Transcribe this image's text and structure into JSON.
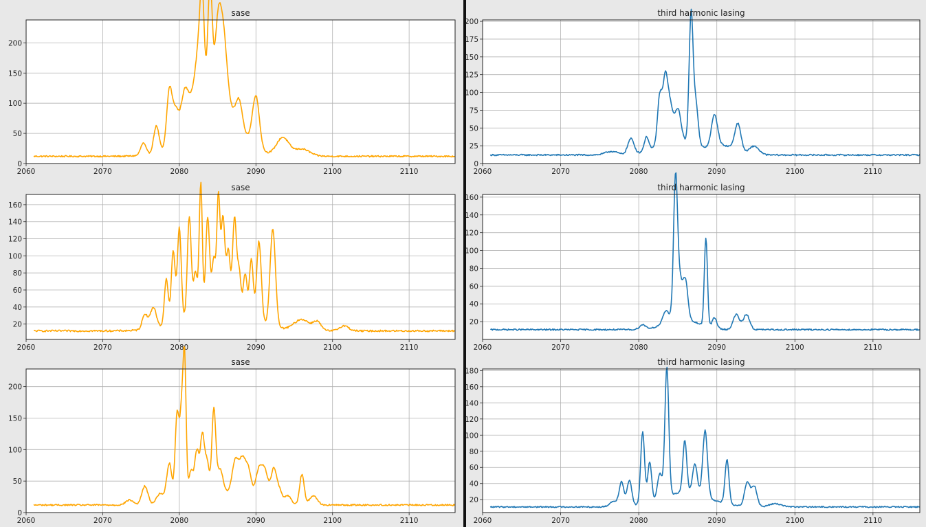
{
  "colors": {
    "sase": "#FFA500",
    "third": "#1F77B4",
    "divider": "#111111",
    "background": "#e8e8e8",
    "grid": "#b0b0b0"
  },
  "chart_data": [
    {
      "type": "line",
      "title": "sase",
      "color": "#FFA500",
      "xlim": [
        2060,
        2116
      ],
      "ylim": [
        0,
        238
      ],
      "xticks": [
        2060,
        2070,
        2080,
        2090,
        2100,
        2110
      ],
      "yticks": [
        0,
        50,
        100,
        150,
        200
      ],
      "grid": true,
      "baseline": 12,
      "noise": 1.2,
      "x_range": [
        2061,
        2116
      ],
      "peaks": [
        [
          2075.3,
          20,
          0.35
        ],
        [
          2077.0,
          45,
          0.35
        ],
        [
          2078.7,
          95,
          0.35
        ],
        [
          2079.5,
          55,
          0.4
        ],
        [
          2080.7,
          80,
          0.5
        ],
        [
          2081.8,
          55,
          0.5
        ],
        [
          2082.5,
          95,
          0.4
        ],
        [
          2083.0,
          180,
          0.3
        ],
        [
          2084.0,
          215,
          0.3
        ],
        [
          2085.0,
          110,
          0.4
        ],
        [
          2085.7,
          120,
          0.5
        ],
        [
          2087.8,
          40,
          0.4
        ],
        [
          2090.0,
          85,
          0.45
        ],
        [
          2093.5,
          30,
          0.8
        ],
        [
          2096.0,
          12,
          1.0
        ],
        [
          2086.0,
          50,
          2.0
        ],
        [
          2084.0,
          40,
          3.5
        ]
      ]
    },
    {
      "type": "line",
      "title": "third harmonic lasing",
      "color": "#1F77B4",
      "xlim": [
        2060,
        2116
      ],
      "ylim": [
        0,
        202
      ],
      "xticks": [
        2060,
        2070,
        2080,
        2090,
        2100,
        2110
      ],
      "yticks": [
        0,
        25,
        50,
        75,
        100,
        125,
        150,
        175,
        200
      ],
      "grid": true,
      "baseline": 12,
      "noise": 1.0,
      "x_range": [
        2061,
        2116
      ],
      "peaks": [
        [
          2076.5,
          5,
          0.8
        ],
        [
          2079.0,
          22,
          0.4
        ],
        [
          2081.0,
          20,
          0.3
        ],
        [
          2082.7,
          70,
          0.3
        ],
        [
          2083.4,
          85,
          0.3
        ],
        [
          2084.0,
          50,
          0.35
        ],
        [
          2085.0,
          45,
          0.4
        ],
        [
          2086.7,
          180,
          0.25
        ],
        [
          2087.3,
          60,
          0.3
        ],
        [
          2089.7,
          45,
          0.4
        ],
        [
          2092.7,
          38,
          0.4
        ],
        [
          2094.8,
          12,
          0.6
        ],
        [
          2085.0,
          20,
          2.5
        ],
        [
          2091.0,
          12,
          1.5
        ]
      ]
    },
    {
      "type": "line",
      "title": "sase",
      "color": "#FFA500",
      "xlim": [
        2060,
        2116
      ],
      "ylim": [
        2,
        172
      ],
      "xticks": [
        2060,
        2070,
        2080,
        2090,
        2100,
        2110
      ],
      "yticks": [
        20,
        40,
        60,
        80,
        100,
        120,
        140,
        160
      ],
      "grid": true,
      "baseline": 12,
      "noise": 1.0,
      "x_range": [
        2061,
        2116
      ],
      "peaks": [
        [
          2075.5,
          18,
          0.35
        ],
        [
          2076.6,
          25,
          0.4
        ],
        [
          2078.3,
          55,
          0.25
        ],
        [
          2079.2,
          85,
          0.25
        ],
        [
          2080.0,
          110,
          0.25
        ],
        [
          2081.3,
          118,
          0.25
        ],
        [
          2082.1,
          50,
          0.25
        ],
        [
          2082.8,
          152,
          0.2
        ],
        [
          2083.7,
          110,
          0.25
        ],
        [
          2084.5,
          60,
          0.25
        ],
        [
          2085.1,
          130,
          0.2
        ],
        [
          2085.7,
          108,
          0.25
        ],
        [
          2086.4,
          70,
          0.25
        ],
        [
          2087.2,
          110,
          0.25
        ],
        [
          2087.8,
          50,
          0.25
        ],
        [
          2088.6,
          50,
          0.25
        ],
        [
          2089.4,
          70,
          0.25
        ],
        [
          2090.4,
          95,
          0.3
        ],
        [
          2092.2,
          115,
          0.35
        ],
        [
          2096.0,
          13,
          1.0
        ],
        [
          2098.0,
          10,
          0.5
        ],
        [
          2101.5,
          6,
          0.6
        ],
        [
          2085.0,
          25,
          4.0
        ]
      ]
    },
    {
      "type": "line",
      "title": "third harmonic lasing",
      "color": "#1F77B4",
      "xlim": [
        2060,
        2116
      ],
      "ylim": [
        0,
        163
      ],
      "xticks": [
        2060,
        2070,
        2080,
        2090,
        2100,
        2110
      ],
      "yticks": [
        20,
        40,
        60,
        80,
        100,
        120,
        140,
        160
      ],
      "grid": true,
      "baseline": 11,
      "noise": 0.8,
      "x_range": [
        2061,
        2116
      ],
      "peaks": [
        [
          2080.5,
          5,
          0.4
        ],
        [
          2083.5,
          14,
          0.4
        ],
        [
          2084.7,
          145,
          0.25
        ],
        [
          2085.2,
          45,
          0.4
        ],
        [
          2086.0,
          40,
          0.3
        ],
        [
          2088.6,
          100,
          0.2
        ],
        [
          2089.7,
          12,
          0.3
        ],
        [
          2092.5,
          17,
          0.4
        ],
        [
          2093.8,
          17,
          0.4
        ],
        [
          2085.5,
          12,
          2.0
        ]
      ]
    },
    {
      "type": "line",
      "title": "sase",
      "color": "#FFA500",
      "xlim": [
        2060,
        2116
      ],
      "ylim": [
        0,
        228
      ],
      "xticks": [
        2060,
        2070,
        2080,
        2090,
        2100,
        2110
      ],
      "yticks": [
        0,
        50,
        100,
        150,
        200
      ],
      "grid": true,
      "baseline": 12,
      "noise": 1.2,
      "x_range": [
        2061,
        2116
      ],
      "peaks": [
        [
          2073.5,
          8,
          0.5
        ],
        [
          2075.5,
          30,
          0.4
        ],
        [
          2077.5,
          18,
          0.5
        ],
        [
          2078.7,
          65,
          0.35
        ],
        [
          2079.7,
          140,
          0.25
        ],
        [
          2080.3,
          140,
          0.25
        ],
        [
          2080.7,
          205,
          0.2
        ],
        [
          2081.5,
          50,
          0.3
        ],
        [
          2082.3,
          80,
          0.3
        ],
        [
          2083.0,
          95,
          0.25
        ],
        [
          2083.6,
          60,
          0.3
        ],
        [
          2084.5,
          135,
          0.25
        ],
        [
          2085.3,
          40,
          0.4
        ],
        [
          2087.3,
          50,
          0.4
        ],
        [
          2088.2,
          50,
          0.4
        ],
        [
          2089.0,
          40,
          0.4
        ],
        [
          2090.4,
          45,
          0.4
        ],
        [
          2091.2,
          45,
          0.4
        ],
        [
          2092.3,
          50,
          0.35
        ],
        [
          2093.0,
          22,
          0.4
        ],
        [
          2094.2,
          14,
          0.4
        ],
        [
          2096.0,
          48,
          0.3
        ],
        [
          2097.5,
          15,
          0.5
        ],
        [
          2087.0,
          20,
          3.0
        ]
      ]
    },
    {
      "type": "line",
      "title": "third harmonic lasing",
      "color": "#1F77B4",
      "xlim": [
        2060,
        2116
      ],
      "ylim": [
        4,
        182
      ],
      "xticks": [
        2060,
        2070,
        2080,
        2090,
        2100,
        2110
      ],
      "yticks": [
        20,
        40,
        60,
        80,
        100,
        120,
        140,
        160,
        180
      ],
      "grid": true,
      "baseline": 11,
      "noise": 0.8,
      "x_range": [
        2061,
        2116
      ],
      "peaks": [
        [
          2076.8,
          7,
          0.5
        ],
        [
          2077.8,
          30,
          0.3
        ],
        [
          2078.8,
          32,
          0.3
        ],
        [
          2080.5,
          90,
          0.25
        ],
        [
          2081.4,
          50,
          0.25
        ],
        [
          2082.7,
          32,
          0.3
        ],
        [
          2083.6,
          160,
          0.25
        ],
        [
          2085.9,
          65,
          0.25
        ],
        [
          2087.2,
          37,
          0.3
        ],
        [
          2088.5,
          82,
          0.3
        ],
        [
          2091.3,
          55,
          0.25
        ],
        [
          2093.9,
          30,
          0.35
        ],
        [
          2094.8,
          25,
          0.35
        ],
        [
          2097.5,
          4,
          0.8
        ],
        [
          2086.0,
          18,
          3.0
        ]
      ]
    }
  ]
}
